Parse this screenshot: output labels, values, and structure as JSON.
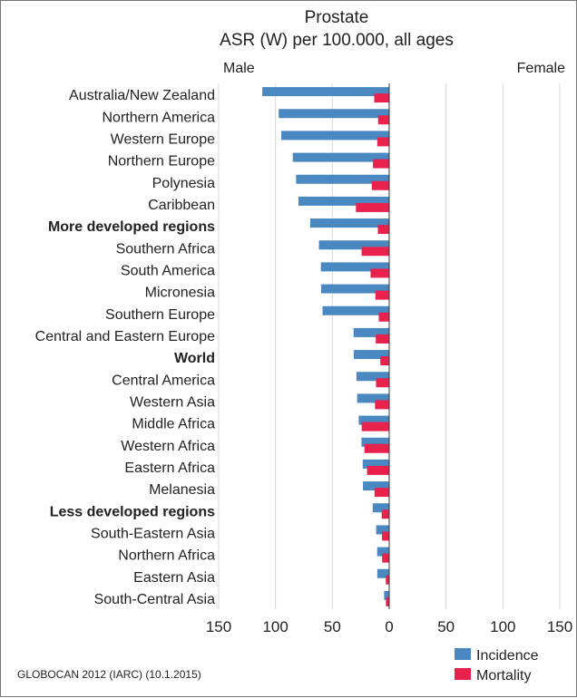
{
  "chart_data": {
    "type": "bar",
    "orientation": "horizontal",
    "title_lines": [
      "Prostate",
      "ASR (W) per 100.000, all ages"
    ],
    "left_label": "Male",
    "right_label": "Female",
    "categories": [
      "Australia/New Zealand",
      "Northern America",
      "Western Europe",
      "Northern Europe",
      "Polynesia",
      "Caribbean",
      "More developed regions",
      "Southern Africa",
      "South America",
      "Micronesia",
      "Southern Europe",
      "Central and Eastern Europe",
      "World",
      "Central America",
      "Western Asia",
      "Middle Africa",
      "Western Africa",
      "Eastern Africa",
      "Melanesia",
      "Less developed regions",
      "South-Eastern Asia",
      "Northern Africa",
      "Eastern Asia",
      "South-Central Asia"
    ],
    "bold_categories": [
      "More developed regions",
      "World",
      "Less developed regions"
    ],
    "series": [
      {
        "name": "Incidence",
        "color": "#4a88c2",
        "values": [
          111.6,
          97.2,
          94.9,
          84.8,
          81.9,
          79.8,
          69.5,
          61.8,
          60.1,
          59.8,
          58.6,
          31.3,
          31.1,
          28.8,
          28.2,
          26.8,
          24.4,
          23.3,
          23.1,
          14.5,
          11.5,
          10.6,
          10.5,
          4.5
        ]
      },
      {
        "name": "Mortality",
        "color": "#e8214d",
        "values": [
          13.2,
          9.8,
          10.5,
          14.3,
          15.3,
          29.3,
          10.0,
          24.3,
          16.4,
          12.1,
          9.2,
          11.8,
          7.8,
          11.6,
          12.5,
          24.2,
          21.8,
          19.5,
          12.9,
          6.6,
          6.3,
          6.2,
          3.0,
          2.9
        ]
      }
    ],
    "xlim": [
      -150,
      150
    ],
    "x_ticks": [
      -150,
      -100,
      -50,
      0,
      50,
      100,
      150
    ],
    "x_tick_labels": [
      "150",
      "100",
      "50",
      "0",
      "50",
      "100",
      "150"
    ],
    "grid": true,
    "legend_position": "bottom-right"
  },
  "source_note": "GLOBOCAN 2012 (IARC) (10.1.2015)"
}
